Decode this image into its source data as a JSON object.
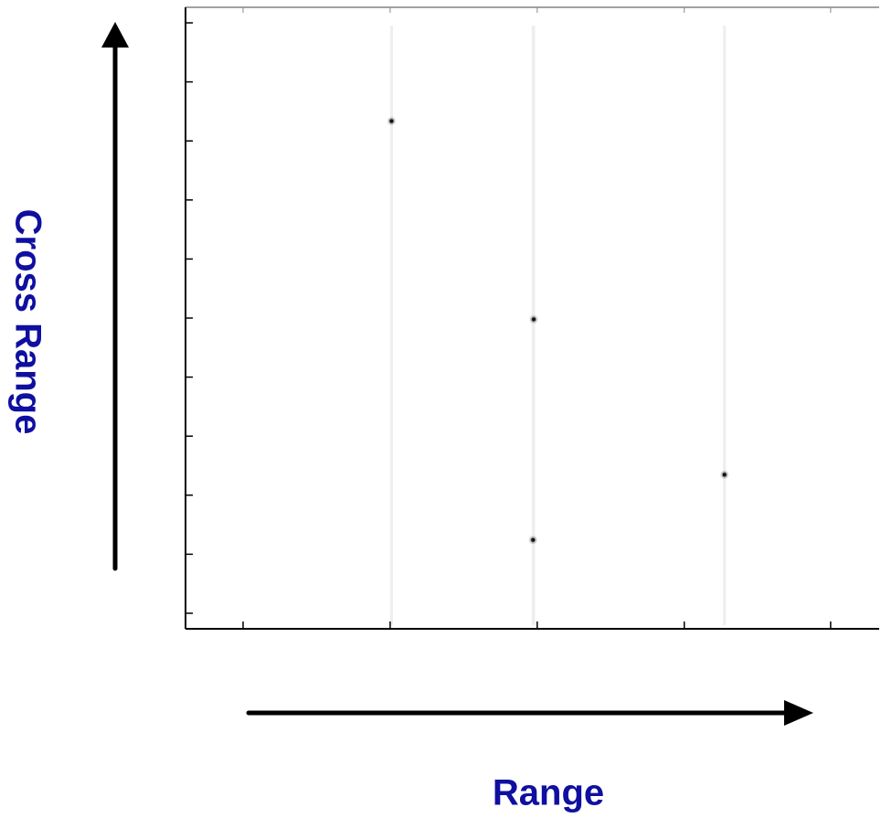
{
  "chart_data": {
    "type": "scatter",
    "title": "",
    "xlabel": "Range",
    "ylabel": "Cross Range",
    "xlim": [
      0,
      1
    ],
    "ylim": [
      0,
      1
    ],
    "grid": false,
    "points": [
      {
        "x": 0.297,
        "y": 0.817
      },
      {
        "x": 0.502,
        "y": 0.498
      },
      {
        "x": 0.777,
        "y": 0.248
      },
      {
        "x": 0.501,
        "y": 0.143
      }
    ]
  },
  "colors": {
    "axis_title": "#0f0fa0",
    "arrows": "#000000",
    "frame": "#000000",
    "points": "#111111",
    "streaks": "#eeeeee"
  }
}
